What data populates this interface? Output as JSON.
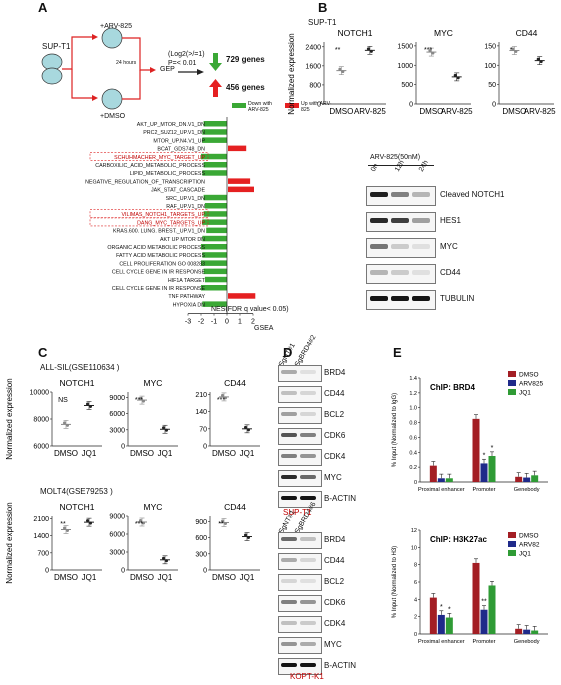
{
  "panels": {
    "A": "A",
    "B": "B",
    "C": "C",
    "D": "D",
    "E": "E"
  },
  "A": {
    "cell_top": "SUP-T1",
    "treat1": "+ARV-825",
    "time": "24 hours",
    "treat2": "+DMSO",
    "gep": "GEP",
    "criteria1": "(Log2(>/=1)",
    "criteria2": "P=< 0.01",
    "down_genes": "729 genes",
    "up_genes": "456 genes",
    "legend_down": "Down with ARV-825",
    "legend_up": "Up with ARV-825",
    "xlabel": "NES(FDR q value< 0.05)",
    "gsea": "GSEA",
    "colors": {
      "down": "#3aa835",
      "up": "#e52021"
    }
  },
  "chart_data": [
    {
      "type": "bar",
      "title": "GSEA",
      "xlabel": "NES(FDR q value< 0.05)",
      "xticks": [
        "-3",
        "-2",
        "-1",
        "0",
        "1",
        "2"
      ],
      "xlim": [
        -3,
        2
      ],
      "categories": [
        "AKT_UP_MTOR_DN.V1_DN",
        "PRC2_SUZ12_UP.V1_DN",
        "MTOR_UP.N4.V1_UP",
        "BCAT_GDS748_DN",
        "SCHUHMACHER_MYC_TARGET_UP",
        "CARBOXILIC_ACID_METABOLIC_PROCESS",
        "LIPID_METABOLIC_PROCESS",
        "NEGATIVE_REGULATION_OF_TRANSCRIPTION",
        "JAK_STAT_CASCADE",
        "SRC_UP.V1_DN",
        "RAF_UP.V1_DN",
        "VILIMAS_NOTCH1_TARGETS_UP",
        "DANG_MYC_TARGETS_UP",
        "KRAS.600. LUNG. BREST._UP.V1_DN",
        "AKT UP MTOR DN",
        "ORGANIC ACID METABOLIC PROCESS",
        "FATTY ACID METABOLIC PROCESS",
        "CELL PROLIFERATION GO 008283",
        "CELL CYCLE GENE IN IR RESPONSE",
        "HIF1A TARGET",
        "CELL CYCLE GENE IN IR RESPONSE",
        "TNF PATHWAY",
        "HYPOXIA DN"
      ],
      "values": [
        -1.8,
        -1.9,
        -1.9,
        1.4,
        -2.0,
        -1.8,
        -1.9,
        1.7,
        2.0,
        -1.8,
        -1.7,
        -1.8,
        -1.9,
        -1.6,
        -1.9,
        -2.0,
        -1.9,
        -2.0,
        -1.8,
        -1.7,
        -2.0,
        2.1,
        -1.9
      ],
      "boxed": [
        4,
        11,
        12
      ]
    },
    {
      "type": "scatter",
      "panel": "B",
      "cell": "SUP-T1",
      "ylabel": "Normalized expression",
      "charts": [
        {
          "title": "NOTCH1",
          "ylim": [
            0,
            2600
          ],
          "yticks": [
            "0",
            "800",
            "1600",
            "2400"
          ],
          "categories": [
            "DMSO",
            "ARV-825"
          ],
          "means": [
            1400,
            2250
          ],
          "sig": "**"
        },
        {
          "title": "MYC",
          "ylim": [
            0,
            1600
          ],
          "yticks": [
            "0",
            "500",
            "1000",
            "1500"
          ],
          "categories": [
            "DMSO",
            "ARV-825"
          ],
          "means": [
            1340,
            700
          ],
          "sig": "***"
        },
        {
          "title": "CD44",
          "ylim": [
            0,
            160
          ],
          "yticks": [
            "0",
            "50",
            "100",
            "150"
          ],
          "categories": [
            "DMSO",
            "ARV-825"
          ],
          "means": [
            138,
            112
          ],
          "sig": "*"
        }
      ]
    },
    {
      "type": "scatter",
      "panel": "C",
      "ylabel": "Normalized expression",
      "groups": [
        {
          "dataset": "ALL-SIL(GSE110634 )",
          "charts": [
            {
              "title": "NOTCH1",
              "ylim": [
                6000,
                10000
              ],
              "yticks": [
                "6000",
                "8000",
                "10000"
              ],
              "categories": [
                "DMSO",
                "JQ1"
              ],
              "means": [
                7600,
                9000
              ],
              "sig": "NS"
            },
            {
              "title": "MYC",
              "ylim": [
                0,
                10000
              ],
              "yticks": [
                "0",
                "3000",
                "6000",
                "9000"
              ],
              "categories": [
                "DMSO",
                "JQ1"
              ],
              "means": [
                8500,
                3100
              ],
              "sig": "***"
            },
            {
              "title": "CD44",
              "ylim": [
                0,
                220
              ],
              "yticks": [
                "0",
                "70",
                "140",
                "210"
              ],
              "categories": [
                "DMSO",
                "JQ1"
              ],
              "means": [
                200,
                70
              ],
              "sig": "***"
            }
          ]
        },
        {
          "dataset": "MOLT4(GSE79253 )",
          "charts": [
            {
              "title": "NOTCH1",
              "ylim": [
                0,
                2200
              ],
              "yticks": [
                "0",
                "700",
                "1400",
                "2100"
              ],
              "categories": [
                "DMSO",
                "JQ1"
              ],
              "means": [
                1650,
                1950
              ],
              "sig": "**"
            },
            {
              "title": "MYC",
              "ylim": [
                0,
                9000
              ],
              "yticks": [
                "0",
                "3000",
                "6000",
                "9000"
              ],
              "categories": [
                "DMSO",
                "JQ1"
              ],
              "means": [
                8000,
                1700
              ],
              "sig": "***"
            },
            {
              "title": "CD44",
              "ylim": [
                0,
                1000
              ],
              "yticks": [
                "0",
                "300",
                "600",
                "900"
              ],
              "categories": [
                "DMSO",
                "JQ1"
              ],
              "means": [
                880,
                620
              ],
              "sig": "**"
            }
          ]
        }
      ]
    },
    {
      "type": "bar",
      "panel": "E",
      "title": "ChIP: BRD4",
      "ylabel": "% Input (Normalized to IgG)",
      "ylim": [
        0,
        1.4
      ],
      "yticks": [
        "0",
        "0.2",
        "0.4",
        "0.6",
        "0.8",
        "1.0",
        "1.2",
        "1.4"
      ],
      "categories": [
        "Proximal enhancer",
        "Promoter",
        "Genebody"
      ],
      "series": [
        {
          "name": "DMSO",
          "color": "#a31e24",
          "values": [
            0.22,
            0.85,
            0.07
          ]
        },
        {
          "name": "ARV825",
          "color": "#1f2a8a",
          "values": [
            0.05,
            0.25,
            0.06
          ]
        },
        {
          "name": "JQ1",
          "color": "#2f9b35",
          "values": [
            0.05,
            0.35,
            0.09
          ]
        }
      ],
      "sig": [
        [
          "",
          "",
          ""
        ],
        [
          "",
          "*",
          "*"
        ],
        [
          "",
          "",
          ""
        ]
      ]
    },
    {
      "type": "bar",
      "panel": "E",
      "title": "ChIP: H3K27ac",
      "ylabel": "% Input (Normalized to H3)",
      "ylim": [
        0,
        12
      ],
      "yticks": [
        "0",
        "2",
        "4",
        "6",
        "8",
        "10",
        "12"
      ],
      "categories": [
        "Proximal enhancer",
        "Promoter",
        "Genebody"
      ],
      "series": [
        {
          "name": "DMSO",
          "color": "#a31e24",
          "values": [
            4.2,
            8.2,
            0.6
          ]
        },
        {
          "name": "ARV82",
          "color": "#1f2a8a",
          "values": [
            2.2,
            2.8,
            0.5
          ]
        },
        {
          "name": "JQ1",
          "color": "#2f9b35",
          "values": [
            1.9,
            5.6,
            0.4
          ]
        }
      ],
      "sig": [
        [
          "",
          "*",
          "*"
        ],
        [
          "",
          "**",
          ""
        ],
        [
          "",
          "",
          ""
        ]
      ]
    }
  ],
  "B_wb": {
    "header": "ARV-825(50nM)",
    "lanes": [
      "0h",
      "12h",
      "24h"
    ],
    "proteins": [
      "Cleaved NOTCH1",
      "HES1",
      "MYC",
      "CD44",
      "TUBULIN"
    ],
    "intensity": [
      [
        0.95,
        0.5,
        0.25
      ],
      [
        0.9,
        0.8,
        0.35
      ],
      [
        0.55,
        0.15,
        0.05
      ],
      [
        0.25,
        0.15,
        0.05
      ],
      [
        1.0,
        1.0,
        1.0
      ]
    ]
  },
  "D": {
    "cell1": "SUP-T1",
    "cell2": "KOPT-K1",
    "lanes1": [
      "SgNT#1",
      "SgBRD4#2"
    ],
    "lanes2": [
      "SgNT#1",
      "SgBRD4#6"
    ],
    "proteins": [
      "BRD4",
      "CD44",
      "BCL2",
      "CDK6",
      "CDK4",
      "MYC",
      "B-ACTIN"
    ],
    "intensity1": [
      [
        0.3,
        0.05
      ],
      [
        0.2,
        0.1
      ],
      [
        0.35,
        0.1
      ],
      [
        0.7,
        0.5
      ],
      [
        0.5,
        0.4
      ],
      [
        0.9,
        0.6
      ],
      [
        1.0,
        1.0
      ]
    ],
    "intensity2": [
      [
        0.6,
        0.2
      ],
      [
        0.3,
        0.1
      ],
      [
        0.1,
        0.05
      ],
      [
        0.5,
        0.4
      ],
      [
        0.2,
        0.15
      ],
      [
        0.4,
        0.3
      ],
      [
        1.0,
        1.0
      ]
    ]
  }
}
